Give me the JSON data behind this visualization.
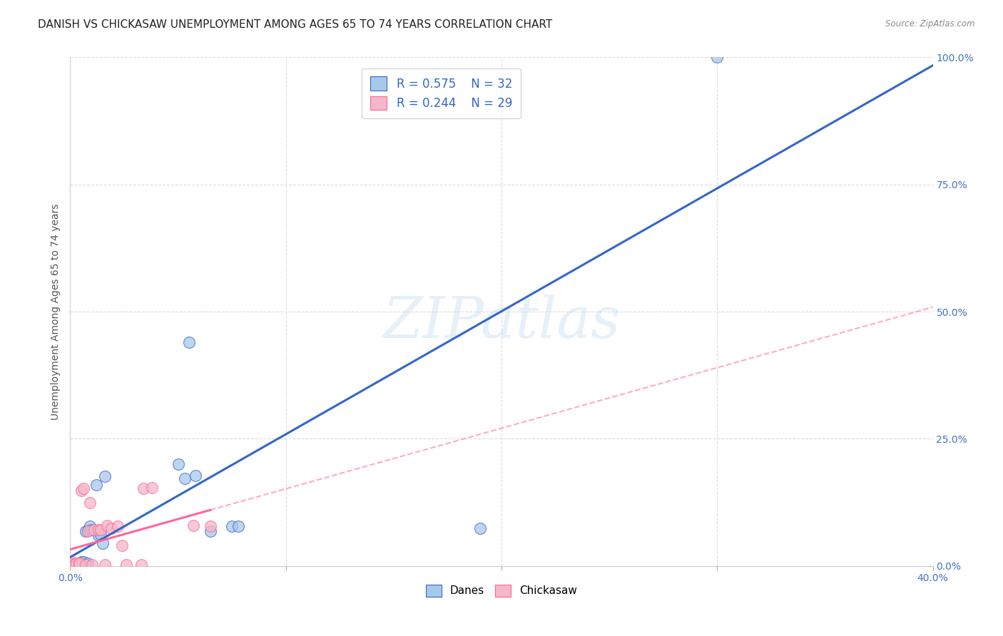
{
  "title": "DANISH VS CHICKASAW UNEMPLOYMENT AMONG AGES 65 TO 74 YEARS CORRELATION CHART",
  "source": "Source: ZipAtlas.com",
  "ylabel": "Unemployment Among Ages 65 to 74 years",
  "xlim": [
    0.0,
    0.4
  ],
  "ylim": [
    0.0,
    1.0
  ],
  "xticks": [
    0.0,
    0.1,
    0.2,
    0.3,
    0.4
  ],
  "yticks": [
    0.0,
    0.25,
    0.5,
    0.75,
    1.0
  ],
  "xtick_labels_show": [
    "0.0%",
    "",
    "",
    "",
    "40.0%"
  ],
  "ytick_labels_show": [
    "0.0%",
    "25.0%",
    "50.0%",
    "75.0%",
    "100.0%"
  ],
  "danes_color": "#A8C8E8",
  "chickasaw_color": "#F4B8C8",
  "danes_line_color": "#3366CC",
  "chickasaw_line_color": "#FF6699",
  "danes_R": 0.575,
  "danes_N": 32,
  "chickasaw_R": 0.244,
  "chickasaw_N": 29,
  "danes_x": [
    0.001,
    0.001,
    0.001,
    0.002,
    0.003,
    0.004,
    0.004,
    0.005,
    0.005,
    0.005,
    0.006,
    0.007,
    0.007,
    0.008,
    0.008,
    0.009,
    0.009,
    0.01,
    0.012,
    0.013,
    0.014,
    0.015,
    0.016,
    0.05,
    0.053,
    0.055,
    0.058,
    0.065,
    0.075,
    0.078,
    0.19,
    0.3
  ],
  "danes_y": [
    0.0,
    0.002,
    0.004,
    0.0,
    0.002,
    0.002,
    0.0,
    0.004,
    0.008,
    0.002,
    0.008,
    0.068,
    0.002,
    0.006,
    0.07,
    0.072,
    0.078,
    0.072,
    0.16,
    0.06,
    0.062,
    0.044,
    0.176,
    0.2,
    0.172,
    0.44,
    0.178,
    0.068,
    0.078,
    0.078,
    0.074,
    1.0
  ],
  "chickasaw_x": [
    0.0,
    0.0,
    0.001,
    0.002,
    0.002,
    0.003,
    0.004,
    0.004,
    0.004,
    0.005,
    0.006,
    0.007,
    0.008,
    0.009,
    0.01,
    0.011,
    0.013,
    0.014,
    0.016,
    0.017,
    0.019,
    0.022,
    0.024,
    0.026,
    0.033,
    0.034,
    0.038,
    0.057,
    0.065
  ],
  "chickasaw_y": [
    0.002,
    0.004,
    0.008,
    0.002,
    0.004,
    0.006,
    0.002,
    0.004,
    0.006,
    0.148,
    0.152,
    0.002,
    0.068,
    0.124,
    0.002,
    0.072,
    0.072,
    0.072,
    0.002,
    0.08,
    0.074,
    0.078,
    0.04,
    0.002,
    0.002,
    0.152,
    0.154,
    0.08,
    0.078
  ],
  "background_color": "#FFFFFF",
  "grid_color": "#DDDDDD",
  "watermark": "ZIPatlas",
  "title_fontsize": 11,
  "axis_label_fontsize": 10,
  "tick_fontsize": 10,
  "legend_fontsize": 12
}
